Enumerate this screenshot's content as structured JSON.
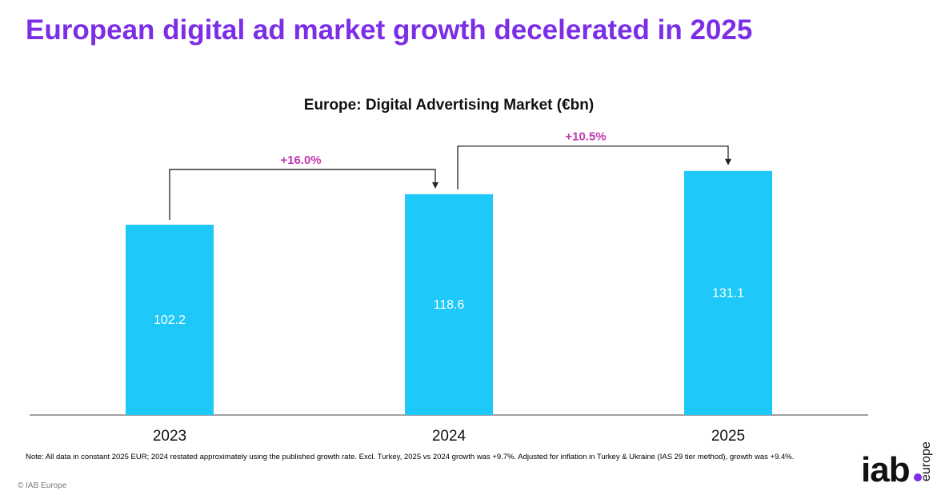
{
  "header": {
    "title": "European digital ad market growth decelerated in 2025"
  },
  "chart_data": {
    "type": "bar",
    "title": "Europe: Digital Advertising Market (€bn)",
    "categories": [
      "2023",
      "2024",
      "2025"
    ],
    "values": [
      102.2,
      118.6,
      131.1
    ],
    "value_labels": [
      "102.2",
      "118.6",
      "131.1"
    ],
    "growth_annotations": [
      {
        "from": "2023",
        "to": "2024",
        "label": "+16.0%"
      },
      {
        "from": "2024",
        "to": "2025",
        "label": "+10.5%"
      }
    ],
    "bar_color": "#1ec8f8",
    "growth_label_color": "#c13ab0",
    "ylim": [
      0,
      140
    ],
    "grid": false,
    "legend": "none"
  },
  "footer": {
    "note": "Note: All data in constant 2025 EUR; 2024 restated approximately using the published growth rate. Excl. Turkey, 2025 vs 2024 growth was +9.7%. Adjusted for inflation in Turkey & Ukraine (IAS 29 tier method), growth was +9.4%.",
    "copyright": "© IAB Europe"
  },
  "logo": {
    "text": "iab.",
    "subtext": "europe",
    "accent_color": "#7b2ee6"
  }
}
